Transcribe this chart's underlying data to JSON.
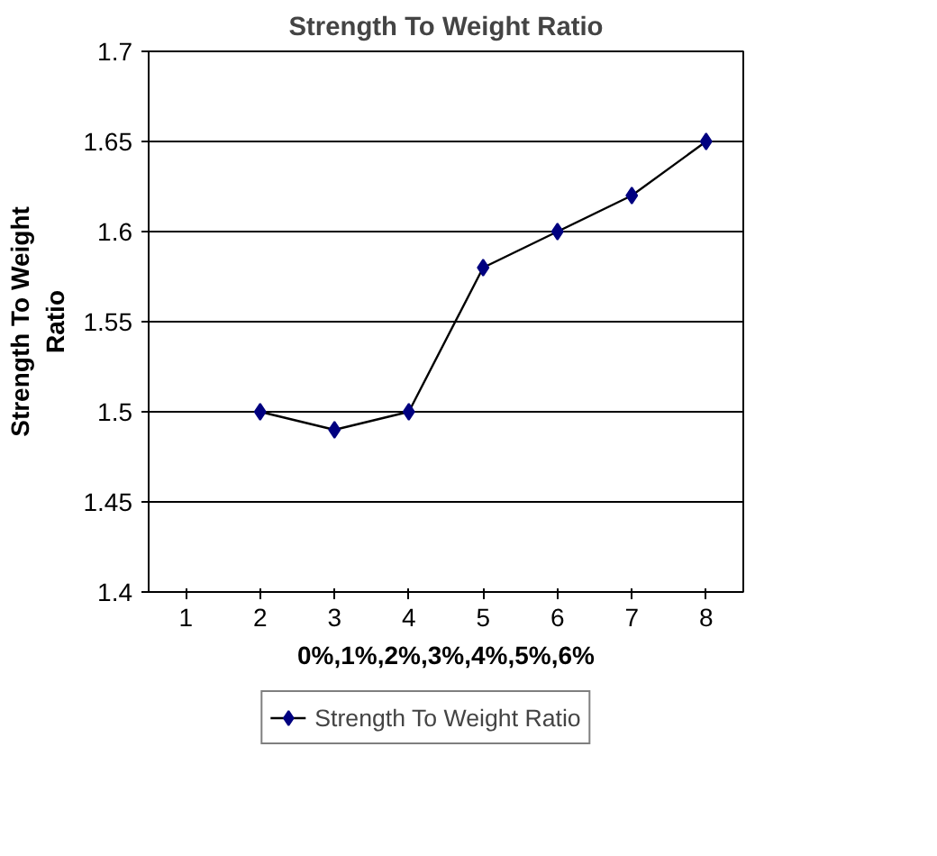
{
  "chart_data": {
    "type": "line",
    "title": "Strength To Weight Ratio",
    "xlabel": "0%,1%,2%,3%,4%,5%,6%",
    "ylabel": "Strength To Weight Ratio",
    "categories": [
      "1",
      "2",
      "3",
      "4",
      "5",
      "6",
      "7",
      "8"
    ],
    "series": [
      {
        "name": "Strength To Weight Ratio",
        "color": "#000080",
        "values": [
          null,
          1.5,
          1.49,
          1.5,
          1.58,
          1.6,
          1.62,
          1.65
        ]
      }
    ],
    "ylim": [
      1.4,
      1.7
    ],
    "yticks": [
      1.4,
      1.45,
      1.5,
      1.55,
      1.6,
      1.65,
      1.7
    ],
    "grid": "y",
    "legend": "bottom",
    "marker": "diamond",
    "line_style": "solid"
  }
}
